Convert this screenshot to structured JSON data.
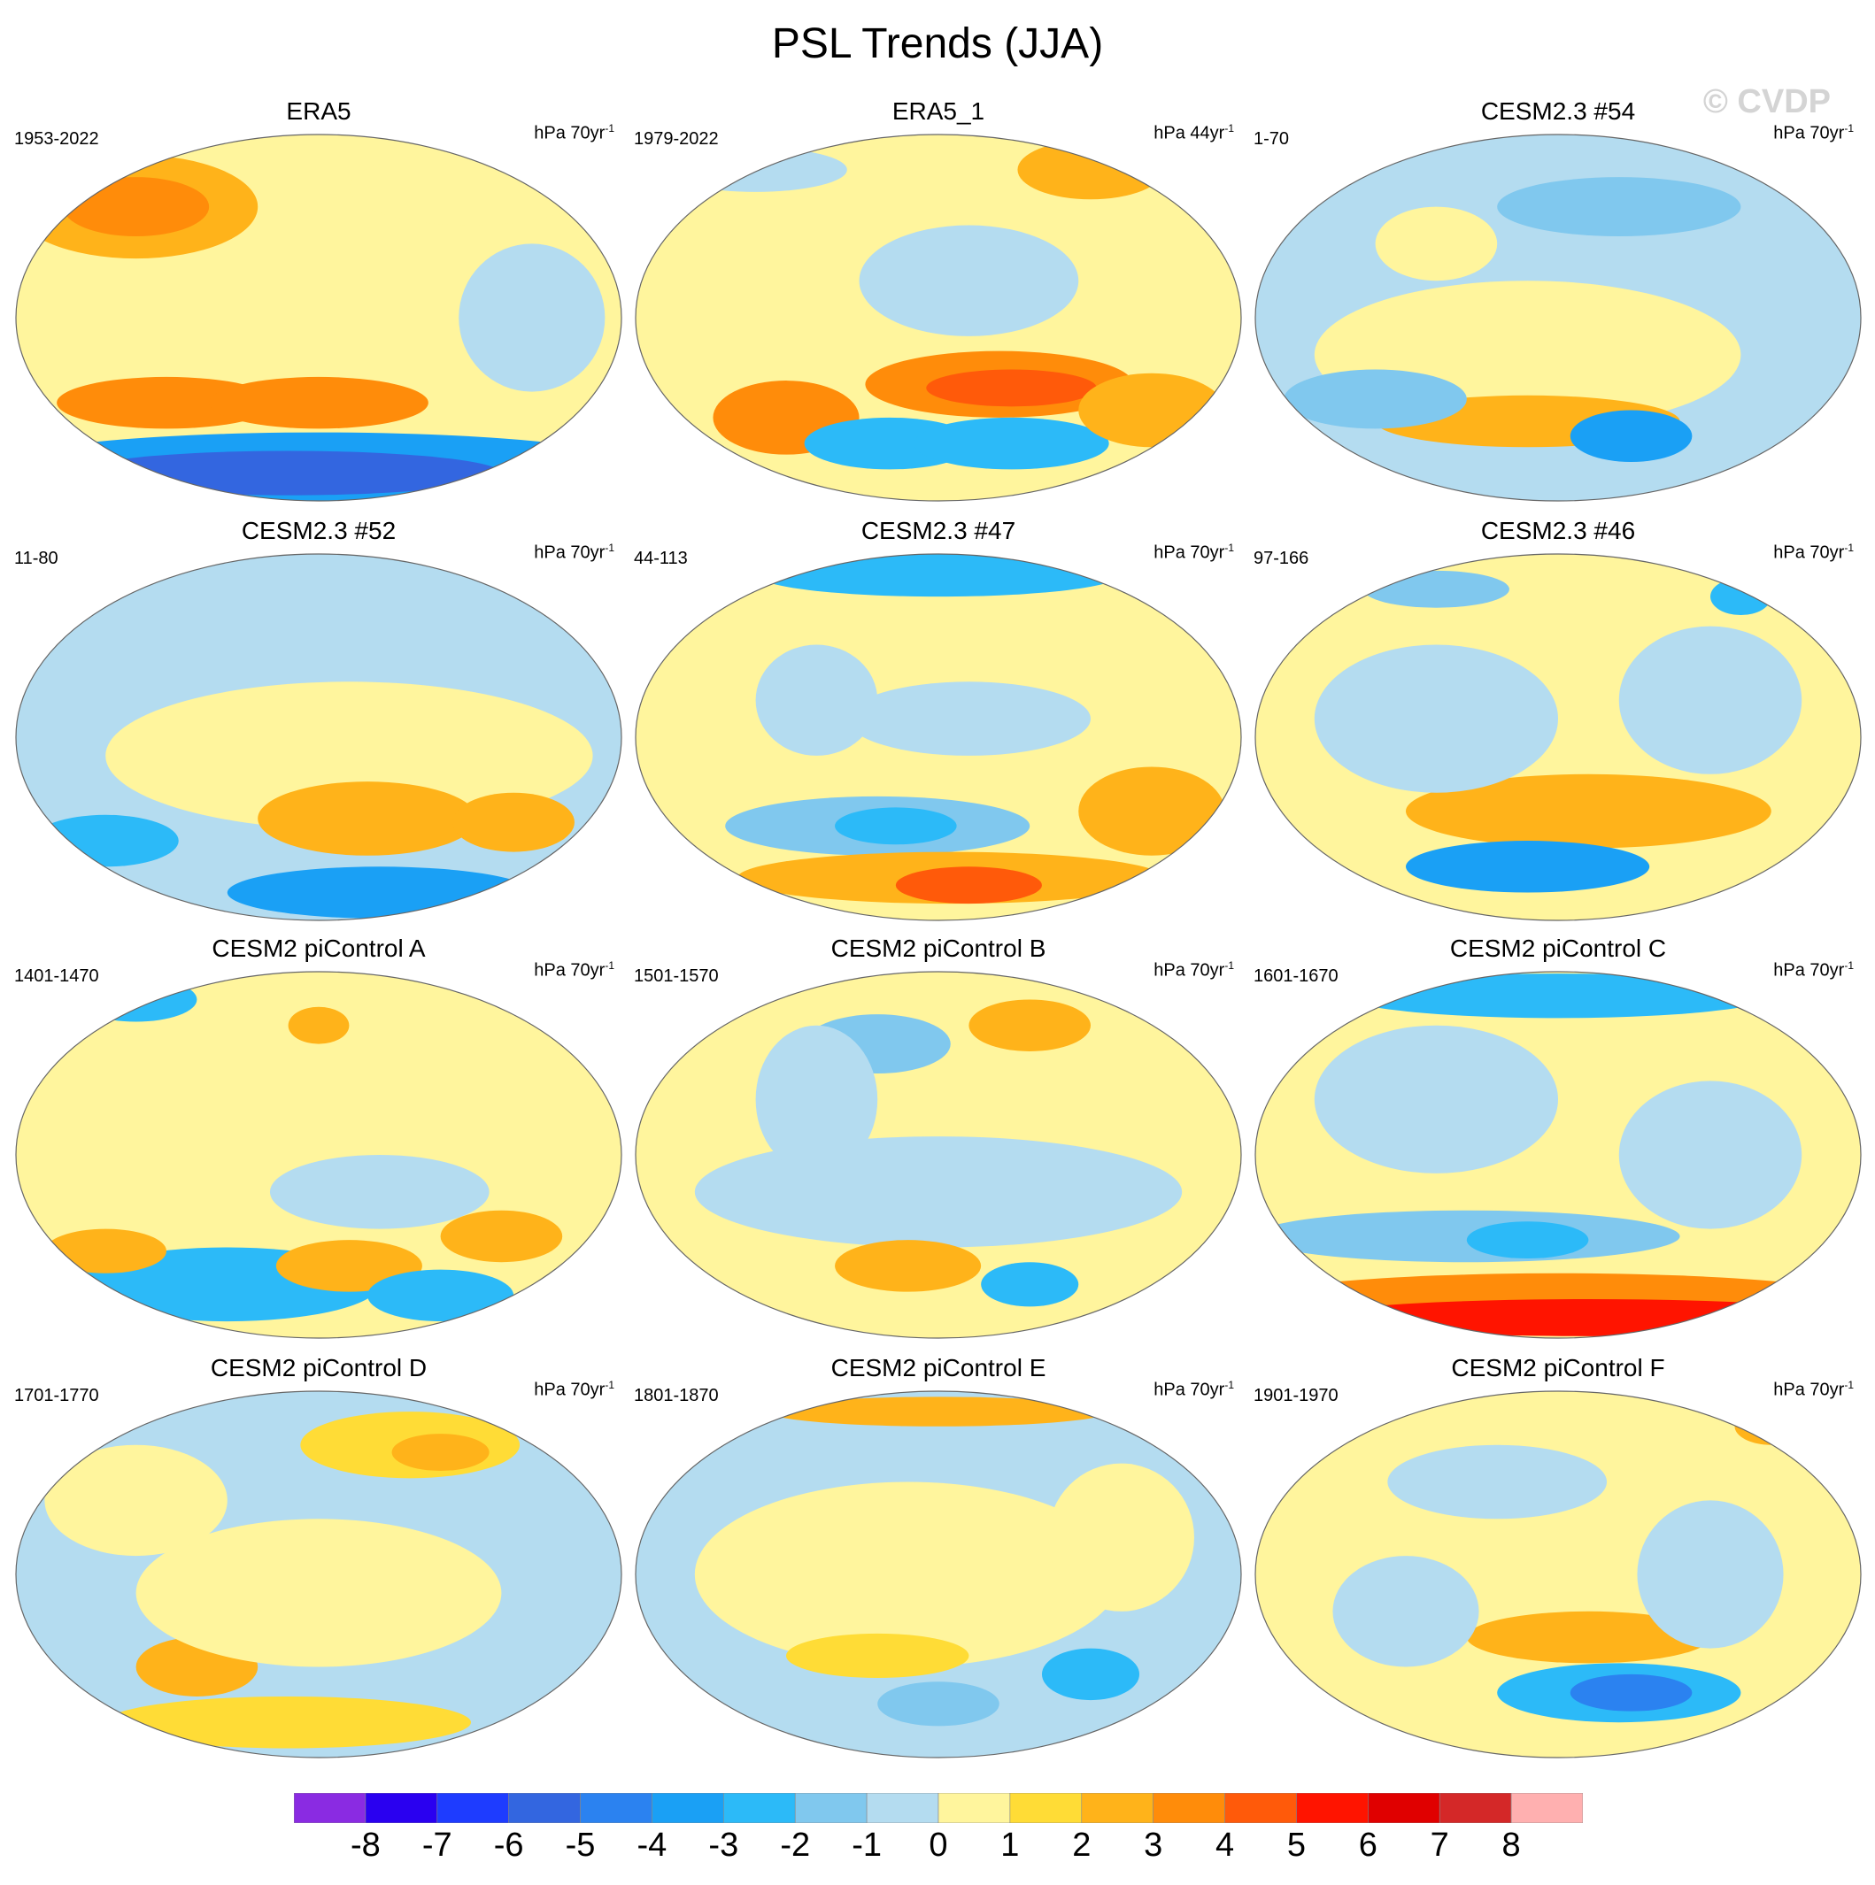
{
  "title": "PSL Trends (JJA)",
  "watermark": "© CVDP",
  "units_prefix": "hPa",
  "panels": [
    {
      "title": "ERA5",
      "period": "1953-2022",
      "trend_span": "70yr",
      "exponent": "-1",
      "pattern": "era5"
    },
    {
      "title": "ERA5_1",
      "period": "1979-2022",
      "trend_span": "44yr",
      "exponent": "-1",
      "pattern": "era5_1"
    },
    {
      "title": "CESM2.3 #54",
      "period": "1-70",
      "trend_span": "70yr",
      "exponent": "-1",
      "pattern": "c54"
    },
    {
      "title": "CESM2.3 #52",
      "period": "11-80",
      "trend_span": "70yr",
      "exponent": "-1",
      "pattern": "c52"
    },
    {
      "title": "CESM2.3 #47",
      "period": "44-113",
      "trend_span": "70yr",
      "exponent": "-1",
      "pattern": "c47"
    },
    {
      "title": "CESM2.3 #46",
      "period": "97-166",
      "trend_span": "70yr",
      "exponent": "-1",
      "pattern": "c46"
    },
    {
      "title": "CESM2 piControl A",
      "period": "1401-1470",
      "trend_span": "70yr",
      "exponent": "-1",
      "pattern": "pA"
    },
    {
      "title": "CESM2 piControl B",
      "period": "1501-1570",
      "trend_span": "70yr",
      "exponent": "-1",
      "pattern": "pB"
    },
    {
      "title": "CESM2 piControl C",
      "period": "1601-1670",
      "trend_span": "70yr",
      "exponent": "-1",
      "pattern": "pC"
    },
    {
      "title": "CESM2 piControl D",
      "period": "1701-1770",
      "trend_span": "70yr",
      "exponent": "-1",
      "pattern": "pD"
    },
    {
      "title": "CESM2 piControl E",
      "period": "1801-1870",
      "trend_span": "70yr",
      "exponent": "-1",
      "pattern": "pE"
    },
    {
      "title": "CESM2 piControl F",
      "period": "1901-1970",
      "trend_span": "70yr",
      "exponent": "-1",
      "pattern": "pF"
    }
  ],
  "colorbar": {
    "labels": [
      "-8",
      "-7",
      "-6",
      "-5",
      "-4",
      "-3",
      "-2",
      "-1",
      "0",
      "1",
      "2",
      "3",
      "4",
      "5",
      "6",
      "7",
      "8"
    ],
    "colors": [
      "#8a2be2",
      "#2a00f0",
      "#1e3cff",
      "#3366e0",
      "#2b82f0",
      "#1aa0f5",
      "#2cbaf8",
      "#80c8ee",
      "#b4dcf0",
      "#fff59d",
      "#ffdc36",
      "#ffb31a",
      "#ff8c0a",
      "#ff5a0a",
      "#ff1400",
      "#e00000",
      "#d42828",
      "#ffb0b0"
    ]
  }
}
